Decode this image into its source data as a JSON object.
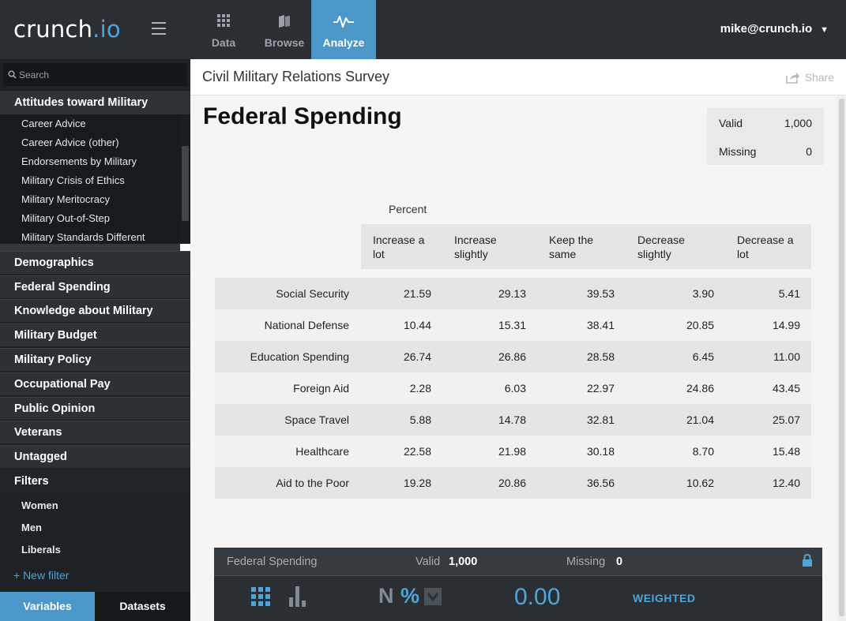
{
  "topbar": {
    "logo_main": "crunch",
    "logo_suffix": ".io",
    "tabs": [
      {
        "label": "Data"
      },
      {
        "label": "Browse"
      },
      {
        "label": "Analyze"
      }
    ],
    "user_email": "mike@crunch.io"
  },
  "sidebar": {
    "search_placeholder": "Search",
    "open_group": {
      "title": "Attitudes toward Military",
      "items": [
        "Career Advice",
        "Career Advice (other)",
        "Endorsements by Military",
        "Military Crisis of Ethics",
        "Military Meritocracy",
        "Military Out-of-Step",
        "Military Standards Different"
      ]
    },
    "groups": [
      "Demographics",
      "Federal Spending",
      "Knowledge about Military",
      "Military Budget",
      "Military Policy",
      "Occupational Pay",
      "Public Opinion",
      "Veterans",
      "Untagged"
    ],
    "filters_title": "Filters",
    "filters": [
      "Women",
      "Men",
      "Liberals"
    ],
    "new_filter": "+ New filter",
    "bottom_tabs": [
      "Variables",
      "Datasets"
    ]
  },
  "main": {
    "dataset_title": "Civil Military Relations Survey",
    "share_label": "Share",
    "variable_title": "Federal Spending",
    "stats": {
      "valid_label": "Valid",
      "valid_value": "1,000",
      "missing_label": "Missing",
      "missing_value": "0"
    },
    "measure_label": "Percent",
    "table": {
      "columns": [
        "Increase a lot",
        "Increase slightly",
        "Keep the same",
        "Decrease slightly",
        "Decrease a lot"
      ],
      "rows": [
        {
          "label": "Social Security",
          "values": [
            "21.59",
            "29.13",
            "39.53",
            "3.90",
            "5.41"
          ]
        },
        {
          "label": "National Defense",
          "values": [
            "10.44",
            "15.31",
            "38.41",
            "20.85",
            "14.99"
          ]
        },
        {
          "label": "Education Spending",
          "values": [
            "26.74",
            "26.86",
            "28.58",
            "6.45",
            "11.00"
          ]
        },
        {
          "label": "Foreign Aid",
          "values": [
            "2.28",
            "6.03",
            "22.97",
            "24.86",
            "43.45"
          ]
        },
        {
          "label": "Space Travel",
          "values": [
            "5.88",
            "14.78",
            "32.81",
            "21.04",
            "25.07"
          ]
        },
        {
          "label": "Healthcare",
          "values": [
            "22.58",
            "21.98",
            "30.18",
            "8.70",
            "15.48"
          ]
        },
        {
          "label": "Aid to the Poor",
          "values": [
            "19.28",
            "20.86",
            "36.56",
            "10.62",
            "12.40"
          ]
        }
      ]
    },
    "panel": {
      "title": "Federal Spending",
      "valid_label": "Valid",
      "valid_value": "1,000",
      "missing_label": "Missing",
      "missing_value": "0",
      "n_label": "N",
      "percent_label": "%",
      "decimal_value": "0.00",
      "weighted_label": "WEIGHTED"
    }
  },
  "colors": {
    "accent": "#4b97c9",
    "topbar_bg": "#2b2f33",
    "sidebar_bg": "#1e2225"
  }
}
